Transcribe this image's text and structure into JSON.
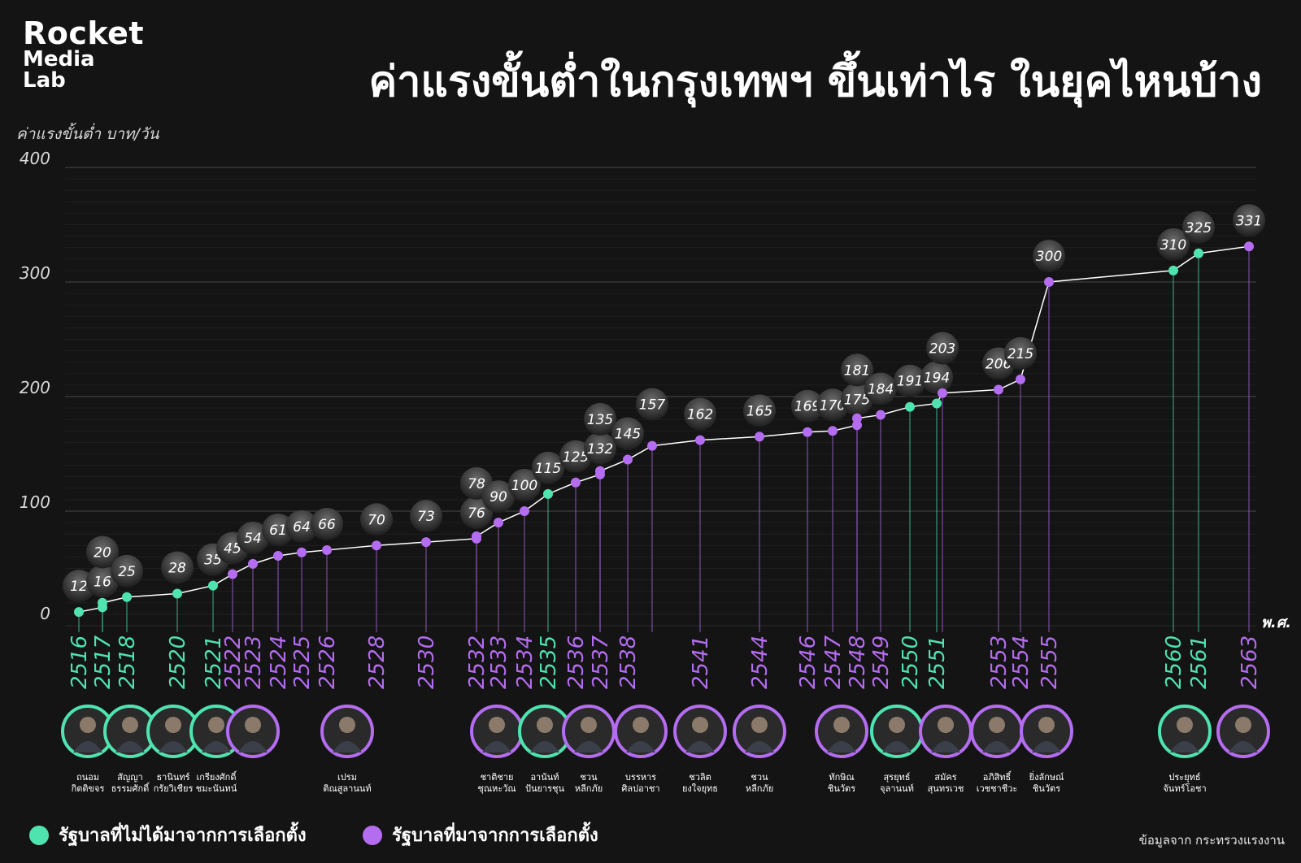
{
  "logo": {
    "line1": "Rocket",
    "line2": "Media",
    "line3": "Lab"
  },
  "title": "ค่าแรงขั้นต่ำในกรุงเทพฯ ขึ้นเท่าไร ในยุคไหนบ้าง",
  "y_axis_label": "ค่าแรงขั้นต่ำ บาท/วัน",
  "x_axis_unit": "พ.ศ.",
  "legend": {
    "non_elected": "รัฐบาลที่ไม่ได้มาจากการเลือกตั้ง",
    "elected": "รัฐบาลที่มาจากการเลือกตั้ง"
  },
  "source": "ข้อมูลจาก กระทรวงแรงงาน",
  "colors": {
    "background": "#141414",
    "non_elected": "#4fe3b0",
    "elected": "#b46cf0",
    "line": "#ffffff",
    "grid": "#3a3a3a"
  },
  "chart_data": {
    "type": "line",
    "y_ticks": [
      0,
      100,
      200,
      300,
      400
    ],
    "ylim": [
      0,
      400
    ],
    "points": [
      {
        "year": "2516",
        "value": 12,
        "group": "non_elected"
      },
      {
        "year": "2517",
        "value": 16,
        "group": "non_elected"
      },
      {
        "year": "2517",
        "value": 20,
        "group": "non_elected"
      },
      {
        "year": "2518",
        "value": 25,
        "group": "non_elected"
      },
      {
        "year": "2520",
        "value": 28,
        "group": "non_elected"
      },
      {
        "year": "2521",
        "value": 35,
        "group": "non_elected"
      },
      {
        "year": "2522",
        "value": 45,
        "group": "elected"
      },
      {
        "year": "2523",
        "value": 54,
        "group": "elected"
      },
      {
        "year": "2524",
        "value": 61,
        "group": "elected"
      },
      {
        "year": "2525",
        "value": 64,
        "group": "elected"
      },
      {
        "year": "2526",
        "value": 66,
        "group": "elected"
      },
      {
        "year": "2528",
        "value": 70,
        "group": "elected"
      },
      {
        "year": "2530",
        "value": 73,
        "group": "elected"
      },
      {
        "year": "2532",
        "value": 76,
        "group": "elected"
      },
      {
        "year": "2532",
        "value": 78,
        "group": "elected"
      },
      {
        "year": "2533",
        "value": 90,
        "group": "elected"
      },
      {
        "year": "2534",
        "value": 100,
        "group": "elected"
      },
      {
        "year": "2535",
        "value": 115,
        "group": "non_elected"
      },
      {
        "year": "2536",
        "value": 125,
        "group": "elected"
      },
      {
        "year": "2537",
        "value": 132,
        "group": "elected"
      },
      {
        "year": "2537",
        "value": 135,
        "group": "elected"
      },
      {
        "year": "2538",
        "value": 145,
        "group": "elected"
      },
      {
        "year": "2538",
        "value": 157,
        "group": "elected"
      },
      {
        "year": "2541",
        "value": 162,
        "group": "elected"
      },
      {
        "year": "2544",
        "value": 165,
        "group": "elected"
      },
      {
        "year": "2546",
        "value": 169,
        "group": "elected"
      },
      {
        "year": "2547",
        "value": 170,
        "group": "elected"
      },
      {
        "year": "2548",
        "value": 175,
        "group": "elected"
      },
      {
        "year": "2548",
        "value": 181,
        "group": "elected"
      },
      {
        "year": "2549",
        "value": 184,
        "group": "elected"
      },
      {
        "year": "2550",
        "value": 191,
        "group": "non_elected"
      },
      {
        "year": "2551",
        "value": 194,
        "group": "non_elected"
      },
      {
        "year": "2551",
        "value": 203,
        "group": "elected"
      },
      {
        "year": "2553",
        "value": 206,
        "group": "elected"
      },
      {
        "year": "2554",
        "value": 215,
        "group": "elected"
      },
      {
        "year": "2555",
        "value": 300,
        "group": "elected"
      },
      {
        "year": "2560",
        "value": 310,
        "group": "non_elected"
      },
      {
        "year": "2561",
        "value": 325,
        "group": "non_elected"
      },
      {
        "year": "2563",
        "value": 331,
        "group": "elected"
      }
    ],
    "leaders": [
      {
        "name1": "ถนอม",
        "name2": "กิตติขจร",
        "group": "non_elected"
      },
      {
        "name1": "สัญญา",
        "name2": "ธรรมศักดิ์",
        "group": "non_elected"
      },
      {
        "name1": "ธานินทร์",
        "name2": "กรัยวิเชียร",
        "group": "non_elected"
      },
      {
        "name1": "เกรียงศักดิ์",
        "name2": "ชมะนันทน์",
        "group": "non_elected"
      },
      {
        "name1": "",
        "name2": "",
        "group": "elected"
      },
      {
        "name1": "เปรม",
        "name2": "ติณสูลานนท์",
        "group": "elected"
      },
      {
        "name1": "ชาติชาย",
        "name2": "ชุณหะวัณ",
        "group": "elected"
      },
      {
        "name1": "อานันท์",
        "name2": "ปันยารชุน",
        "group": "non_elected"
      },
      {
        "name1": "ชวน",
        "name2": "หลีกภัย",
        "group": "elected"
      },
      {
        "name1": "บรรหาร",
        "name2": "ศิลปอาชา",
        "group": "elected"
      },
      {
        "name1": "ชวลิต",
        "name2": "ยงใจยุทธ",
        "group": "elected"
      },
      {
        "name1": "ชวน",
        "name2": "หลีกภัย",
        "group": "elected"
      },
      {
        "name1": "ทักษิณ",
        "name2": "ชินวัตร",
        "group": "elected"
      },
      {
        "name1": "สุรยุทธ์",
        "name2": "จุลานนท์",
        "group": "non_elected"
      },
      {
        "name1": "สมัคร",
        "name2": "สุนทรเวช",
        "group": "elected"
      },
      {
        "name1": "อภิสิทธิ์",
        "name2": "เวชชาชีวะ",
        "group": "elected"
      },
      {
        "name1": "ยิ่งลักษณ์",
        "name2": "ชินวัตร",
        "group": "elected"
      },
      {
        "name1": "ประยุทธ์",
        "name2": "จันทร์โอชา",
        "group": "non_elected"
      },
      {
        "name1": "",
        "name2": "",
        "group": "elected"
      }
    ]
  }
}
